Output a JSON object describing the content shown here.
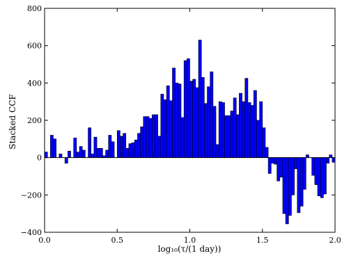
{
  "chart_data": {
    "type": "bar",
    "xlabel": "log₁₀(τ/(1 day))",
    "ylabel": "Stacked CCF",
    "xlim": [
      0.0,
      2.0
    ],
    "ylim": [
      -400,
      800
    ],
    "x_ticks": [
      "0.0",
      "0.5",
      "1.0",
      "1.5",
      "2.0"
    ],
    "x_tick_values": [
      0.0,
      0.5,
      1.0,
      1.5,
      2.0
    ],
    "y_ticks": [
      "−400",
      "−200",
      "0",
      "200",
      "400",
      "600",
      "800"
    ],
    "y_tick_values": [
      -400,
      -200,
      0,
      200,
      400,
      600,
      800
    ],
    "bin_width": 0.02,
    "bar_color": "#0000ff",
    "edge_color": "#000000",
    "x": [
      0.0,
      0.02,
      0.04,
      0.06,
      0.08,
      0.1,
      0.12,
      0.14,
      0.16,
      0.18,
      0.2,
      0.22,
      0.24,
      0.26,
      0.28,
      0.3,
      0.32,
      0.34,
      0.36,
      0.38,
      0.4,
      0.42,
      0.44,
      0.46,
      0.48,
      0.5,
      0.52,
      0.54,
      0.56,
      0.58,
      0.6,
      0.62,
      0.64,
      0.66,
      0.68,
      0.7,
      0.72,
      0.74,
      0.76,
      0.78,
      0.8,
      0.82,
      0.84,
      0.86,
      0.88,
      0.9,
      0.92,
      0.94,
      0.96,
      0.98,
      1.0,
      1.02,
      1.04,
      1.06,
      1.08,
      1.1,
      1.12,
      1.14,
      1.16,
      1.18,
      1.2,
      1.22,
      1.24,
      1.26,
      1.28,
      1.3,
      1.32,
      1.34,
      1.36,
      1.38,
      1.4,
      1.42,
      1.44,
      1.46,
      1.48,
      1.5,
      1.52,
      1.54,
      1.56,
      1.58,
      1.6,
      1.62,
      1.64,
      1.66,
      1.68,
      1.7,
      1.72,
      1.74,
      1.76,
      1.78,
      1.8,
      1.82,
      1.84,
      1.86,
      1.88,
      1.9,
      1.92,
      1.94,
      1.96,
      1.98
    ],
    "values": [
      30,
      0,
      120,
      100,
      0,
      20,
      0,
      -30,
      35,
      0,
      105,
      30,
      60,
      40,
      0,
      160,
      20,
      110,
      50,
      50,
      10,
      40,
      120,
      85,
      0,
      145,
      115,
      130,
      50,
      75,
      80,
      95,
      130,
      165,
      220,
      220,
      210,
      230,
      230,
      115,
      340,
      310,
      385,
      305,
      480,
      400,
      395,
      215,
      520,
      530,
      410,
      420,
      375,
      630,
      430,
      290,
      380,
      460,
      275,
      70,
      300,
      295,
      225,
      225,
      250,
      320,
      230,
      345,
      300,
      425,
      295,
      280,
      360,
      200,
      300,
      160,
      55,
      -85,
      -30,
      -35,
      -125,
      -105,
      -300,
      -355,
      -310,
      -200,
      -60,
      -295,
      -260,
      -170,
      15,
      0,
      -95,
      -145,
      -205,
      -215,
      -195,
      -30,
      15,
      -25
    ]
  }
}
